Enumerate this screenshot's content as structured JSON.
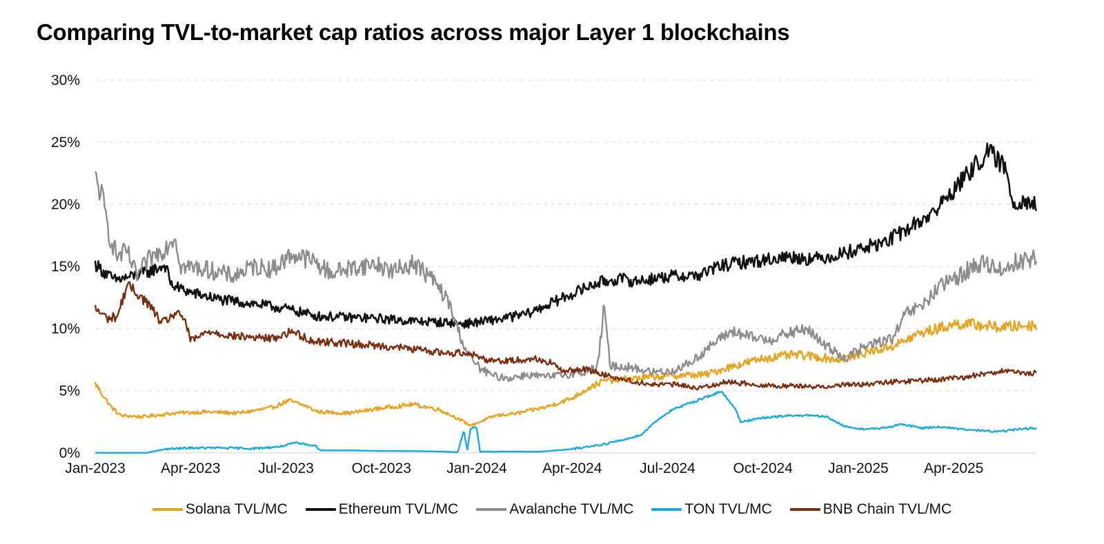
{
  "chart_data": {
    "type": "line",
    "title": "Comparing TVL-to-market cap ratios across major Layer 1 blockchains",
    "xlabel": "",
    "ylabel": "",
    "ylim": [
      0,
      30
    ],
    "y_ticks": [
      0,
      5,
      10,
      15,
      20,
      25,
      30
    ],
    "y_tick_labels": [
      "0%",
      "5%",
      "10%",
      "15%",
      "20%",
      "25%",
      "30%"
    ],
    "x_tick_labels": [
      "Jan-2023",
      "Apr-2023",
      "Jul-2023",
      "Oct-2023",
      "Jan-2024",
      "Apr-2024",
      "Jul-2024",
      "Oct-2024",
      "Jan-2025",
      "Apr-2025"
    ],
    "x_tick_index": [
      0,
      3,
      6,
      9,
      12,
      15,
      18,
      21,
      24,
      27
    ],
    "x_range_months": [
      0,
      29.6
    ],
    "gridlines": "horizontal-dashed",
    "legend_position": "bottom-center",
    "series": [
      {
        "name": "Solana TVL/MC",
        "color": "#E8A21C",
        "points": [
          [
            0,
            5.6
          ],
          [
            0.25,
            4.6
          ],
          [
            0.5,
            3.7
          ],
          [
            0.8,
            3.0
          ],
          [
            1.5,
            2.9
          ],
          [
            2.5,
            3.2
          ],
          [
            3.5,
            3.3
          ],
          [
            4.5,
            3.2
          ],
          [
            5.5,
            3.6
          ],
          [
            6.1,
            4.2
          ],
          [
            6.6,
            3.8
          ],
          [
            7,
            3.3
          ],
          [
            8,
            3.2
          ],
          [
            9,
            3.6
          ],
          [
            10,
            3.9
          ],
          [
            10.8,
            3.5
          ],
          [
            11.3,
            2.9
          ],
          [
            11.8,
            2.2
          ],
          [
            12.2,
            2.6
          ],
          [
            12.6,
            3.0
          ],
          [
            13.3,
            3.2
          ],
          [
            14.2,
            3.7
          ],
          [
            15,
            4.4
          ],
          [
            15.5,
            5.2
          ],
          [
            16,
            5.8
          ],
          [
            17,
            6.0
          ],
          [
            18,
            6.2
          ],
          [
            19.2,
            6.3
          ],
          [
            19.8,
            6.8
          ],
          [
            20.4,
            7.2
          ],
          [
            21,
            7.6
          ],
          [
            22,
            7.9
          ],
          [
            22.8,
            7.7
          ],
          [
            23.4,
            7.5
          ],
          [
            24.1,
            8.0
          ],
          [
            24.8,
            8.4
          ],
          [
            25.3,
            8.8
          ],
          [
            25.9,
            9.6
          ],
          [
            26.5,
            10.0
          ],
          [
            27.1,
            10.4
          ],
          [
            27.8,
            10.3
          ],
          [
            28.4,
            10.1
          ],
          [
            29,
            10.2
          ],
          [
            29.6,
            10.3
          ]
        ]
      },
      {
        "name": "Ethereum TVL/MC",
        "color": "#111111",
        "points": [
          [
            0,
            15.2
          ],
          [
            0.3,
            14.5
          ],
          [
            0.6,
            13.9
          ],
          [
            1,
            14.1
          ],
          [
            1.6,
            14.5
          ],
          [
            2.2,
            15.1
          ],
          [
            2.4,
            13.5
          ],
          [
            3,
            12.9
          ],
          [
            4,
            12.3
          ],
          [
            5,
            12.0
          ],
          [
            6,
            11.6
          ],
          [
            7,
            11.0
          ],
          [
            8,
            10.9
          ],
          [
            9,
            10.8
          ],
          [
            10,
            10.6
          ],
          [
            11,
            10.5
          ],
          [
            11.6,
            10.4
          ],
          [
            12,
            10.5
          ],
          [
            12.8,
            10.8
          ],
          [
            13.6,
            11.2
          ],
          [
            14.3,
            12.0
          ],
          [
            15,
            12.8
          ],
          [
            15.8,
            13.7
          ],
          [
            16.5,
            14.0
          ],
          [
            17,
            13.8
          ],
          [
            18,
            14.2
          ],
          [
            19,
            14.3
          ],
          [
            19.6,
            15.0
          ],
          [
            20.2,
            15.3
          ],
          [
            21,
            15.5
          ],
          [
            21.8,
            15.8
          ],
          [
            22.6,
            15.6
          ],
          [
            23.3,
            15.9
          ],
          [
            24,
            16.4
          ],
          [
            24.8,
            16.9
          ],
          [
            25.6,
            18.1
          ],
          [
            26.4,
            19.4
          ],
          [
            26.9,
            20.9
          ],
          [
            27.4,
            22.3
          ],
          [
            27.8,
            23.5
          ],
          [
            28.1,
            24.2
          ],
          [
            28.6,
            23.0
          ],
          [
            28.9,
            20.0
          ],
          [
            29.2,
            20.4
          ],
          [
            29.6,
            19.9
          ]
        ]
      },
      {
        "name": "Avalanche TVL/MC",
        "color": "#8C8C8C",
        "points": [
          [
            0,
            22.0
          ],
          [
            0.2,
            20.8
          ],
          [
            0.45,
            17.5
          ],
          [
            0.7,
            15.8
          ],
          [
            1.0,
            16.2
          ],
          [
            1.3,
            14.2
          ],
          [
            1.7,
            15.6
          ],
          [
            2.2,
            16.5
          ],
          [
            2.5,
            17.5
          ],
          [
            2.7,
            15.0
          ],
          [
            3.2,
            14.9
          ],
          [
            3.8,
            14.6
          ],
          [
            4.3,
            14.2
          ],
          [
            5,
            15.0
          ],
          [
            5.6,
            14.8
          ],
          [
            6.2,
            16.0
          ],
          [
            6.8,
            15.5
          ],
          [
            7.4,
            14.5
          ],
          [
            8.1,
            14.9
          ],
          [
            8.8,
            15.2
          ],
          [
            9.4,
            14.6
          ],
          [
            10,
            15.3
          ],
          [
            10.6,
            14.0
          ],
          [
            11.1,
            12.2
          ],
          [
            11.4,
            10.0
          ],
          [
            11.7,
            8.0
          ],
          [
            12.1,
            6.8
          ],
          [
            12.5,
            6.2
          ],
          [
            13,
            6.0
          ],
          [
            13.6,
            6.3
          ],
          [
            14.2,
            6.1
          ],
          [
            14.8,
            6.3
          ],
          [
            15.4,
            6.5
          ],
          [
            15.8,
            6.9
          ],
          [
            16.0,
            11.7
          ],
          [
            16.2,
            7.0
          ],
          [
            16.8,
            6.9
          ],
          [
            17.5,
            6.5
          ],
          [
            18.2,
            6.6
          ],
          [
            18.8,
            7.4
          ],
          [
            19.4,
            8.7
          ],
          [
            20,
            9.8
          ],
          [
            20.6,
            9.3
          ],
          [
            21.2,
            9.1
          ],
          [
            21.8,
            9.6
          ],
          [
            22.4,
            10.0
          ],
          [
            22.8,
            8.9
          ],
          [
            23.2,
            8.3
          ],
          [
            23.6,
            7.6
          ],
          [
            24.1,
            8.4
          ],
          [
            24.6,
            8.9
          ],
          [
            25.1,
            9.2
          ],
          [
            25.5,
            11.2
          ],
          [
            26,
            11.8
          ],
          [
            26.5,
            13.2
          ],
          [
            27,
            14.0
          ],
          [
            27.5,
            14.8
          ],
          [
            28,
            15.3
          ],
          [
            28.5,
            14.7
          ],
          [
            29,
            15.4
          ],
          [
            29.6,
            15.7
          ]
        ]
      },
      {
        "name": "TON TVL/MC",
        "color": "#17A9E0",
        "points": [
          [
            0,
            0.0
          ],
          [
            1.6,
            0.0
          ],
          [
            2.2,
            0.3
          ],
          [
            3,
            0.4
          ],
          [
            4,
            0.4
          ],
          [
            5,
            0.35
          ],
          [
            5.8,
            0.5
          ],
          [
            6.3,
            0.8
          ],
          [
            6.9,
            0.6
          ],
          [
            7.1,
            0.2
          ],
          [
            8,
            0.2
          ],
          [
            9,
            0.15
          ],
          [
            10,
            0.15
          ],
          [
            11,
            0.1
          ],
          [
            11.4,
            0.05
          ],
          [
            11.6,
            1.8
          ],
          [
            11.7,
            0.1
          ],
          [
            11.8,
            2.0
          ],
          [
            12.0,
            2.0
          ],
          [
            12.1,
            0.1
          ],
          [
            13,
            0.1
          ],
          [
            14,
            0.1
          ],
          [
            15,
            0.3
          ],
          [
            16,
            0.7
          ],
          [
            16.7,
            1.1
          ],
          [
            17.2,
            1.5
          ],
          [
            17.6,
            2.5
          ],
          [
            18.1,
            3.4
          ],
          [
            18.7,
            4.0
          ],
          [
            19.3,
            4.6
          ],
          [
            19.7,
            4.9
          ],
          [
            20.1,
            3.7
          ],
          [
            20.3,
            2.5
          ],
          [
            21,
            2.8
          ],
          [
            21.8,
            3.0
          ],
          [
            22.5,
            3.0
          ],
          [
            23,
            2.9
          ],
          [
            23.6,
            2.1
          ],
          [
            24.2,
            1.9
          ],
          [
            24.8,
            2.0
          ],
          [
            25.4,
            2.3
          ],
          [
            26,
            2.0
          ],
          [
            26.6,
            2.1
          ],
          [
            27.2,
            1.9
          ],
          [
            27.8,
            1.8
          ],
          [
            28.4,
            1.7
          ],
          [
            29,
            1.9
          ],
          [
            29.6,
            2.0
          ]
        ]
      },
      {
        "name": "BNB Chain TVL/MC",
        "color": "#7A2E0E",
        "points": [
          [
            0,
            11.6
          ],
          [
            0.4,
            10.8
          ],
          [
            0.7,
            11.0
          ],
          [
            1.0,
            13.5
          ],
          [
            1.3,
            12.9
          ],
          [
            1.7,
            11.9
          ],
          [
            2.1,
            10.4
          ],
          [
            2.5,
            11.2
          ],
          [
            2.8,
            10.9
          ],
          [
            3.0,
            9.0
          ],
          [
            3.6,
            9.8
          ],
          [
            4.3,
            9.4
          ],
          [
            5,
            9.3
          ],
          [
            5.6,
            9.2
          ],
          [
            6.2,
            9.8
          ],
          [
            6.8,
            9.0
          ],
          [
            7.5,
            8.9
          ],
          [
            8.5,
            8.7
          ],
          [
            9.5,
            8.5
          ],
          [
            10.5,
            8.2
          ],
          [
            11.1,
            8.0
          ],
          [
            11.7,
            8.1
          ],
          [
            12.3,
            7.5
          ],
          [
            13,
            7.4
          ],
          [
            13.8,
            7.6
          ],
          [
            14.4,
            7.2
          ],
          [
            14.7,
            6.5
          ],
          [
            15.3,
            6.8
          ],
          [
            16,
            6.3
          ],
          [
            16.8,
            5.8
          ],
          [
            17.5,
            5.5
          ],
          [
            18.3,
            5.5
          ],
          [
            19,
            5.2
          ],
          [
            19.8,
            5.7
          ],
          [
            20.4,
            5.6
          ],
          [
            21.2,
            5.4
          ],
          [
            22,
            5.4
          ],
          [
            22.8,
            5.3
          ],
          [
            23.5,
            5.5
          ],
          [
            24.3,
            5.5
          ],
          [
            25,
            5.7
          ],
          [
            25.8,
            5.8
          ],
          [
            26.6,
            5.9
          ],
          [
            27.4,
            6.1
          ],
          [
            28.2,
            6.5
          ],
          [
            28.6,
            6.6
          ],
          [
            29,
            6.4
          ],
          [
            29.6,
            6.4
          ]
        ]
      }
    ]
  }
}
